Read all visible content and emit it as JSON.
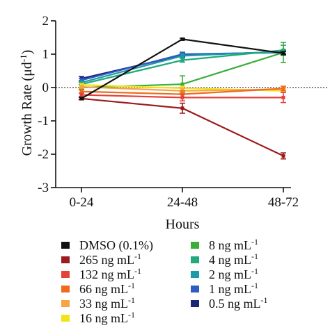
{
  "chart_data": {
    "type": "line",
    "xlabel": "Hours",
    "ylabel": "Growth Rate (μd",
    "ylabel_sup": "-1",
    "ylabel_close": ")",
    "categories": [
      "0-24",
      "24-48",
      "48-72"
    ],
    "ylim": [
      -3,
      2
    ],
    "yticks": [
      -3,
      -2,
      -1,
      0,
      1,
      2
    ],
    "ytick_labels": [
      "-3",
      "-2",
      "-1",
      "0",
      "1",
      "2"
    ],
    "reference_line": 0,
    "series": [
      {
        "name": "DMSO (0.1%)",
        "sup": "",
        "color": "#111111",
        "values": [
          -0.33,
          1.45,
          1.03
        ],
        "err": [
          0.03,
          0.03,
          0.05
        ]
      },
      {
        "name": "265 ng mL",
        "sup": "-1",
        "color": "#9b1c1c",
        "values": [
          -0.33,
          -0.62,
          -2.05
        ],
        "err": [
          0.04,
          0.15,
          0.09
        ]
      },
      {
        "name": "132 ng mL",
        "sup": "-1",
        "color": "#e5413b",
        "values": [
          -0.22,
          -0.3,
          -0.3
        ],
        "err": [
          0.05,
          0.1,
          0.15
        ]
      },
      {
        "name": "66 ng mL",
        "sup": "-1",
        "color": "#f06a1d",
        "values": [
          -0.12,
          -0.2,
          -0.03
        ],
        "err": [
          0.05,
          0.1,
          0.07
        ]
      },
      {
        "name": "33 ng mL",
        "sup": "-1",
        "color": "#f7a445",
        "values": [
          0.02,
          -0.1,
          -0.05
        ],
        "err": [
          0.04,
          0.08,
          0.05
        ]
      },
      {
        "name": "16 ng mL",
        "sup": "-1",
        "color": "#f1e21a",
        "values": [
          0.08,
          -0.02,
          -0.1
        ],
        "err": [
          0.04,
          0.06,
          0.05
        ]
      },
      {
        "name": "8 ng mL",
        "sup": "-1",
        "color": "#3aad3a",
        "values": [
          0.0,
          0.1,
          1.05
        ],
        "err": [
          0.05,
          0.25,
          0.3
        ]
      },
      {
        "name": "4 ng mL",
        "sup": "-1",
        "color": "#22a97c",
        "values": [
          0.1,
          0.82,
          1.12
        ],
        "err": [
          0.05,
          0.06,
          0.15
        ]
      },
      {
        "name": "2 ng mL",
        "sup": "-1",
        "color": "#1d9aa8",
        "values": [
          0.15,
          0.95,
          1.08
        ],
        "err": [
          0.05,
          0.06,
          0.05
        ]
      },
      {
        "name": "1 ng mL",
        "sup": "-1",
        "color": "#2f5bc4",
        "values": [
          0.22,
          1.0,
          1.05
        ],
        "err": [
          0.05,
          0.06,
          0.05
        ]
      },
      {
        "name": "0.5 ng mL",
        "sup": "-1",
        "color": "#1b2773",
        "values": [
          0.27,
          0.97,
          1.07
        ],
        "err": [
          0.06,
          0.06,
          0.05
        ]
      }
    ]
  }
}
